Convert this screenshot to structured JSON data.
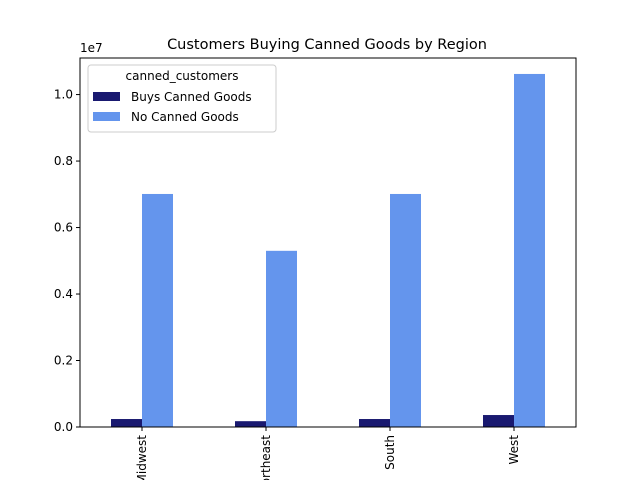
{
  "chart_data": {
    "type": "bar",
    "title": "Customers Buying Canned Goods by Region",
    "xlabel": "",
    "ylabel": "",
    "y_scale_label": "1e7",
    "categories": [
      "Midwest",
      "Northeast",
      "South",
      "West"
    ],
    "ylim": [
      0,
      11100000
    ],
    "y_ticks": [
      {
        "value": 0,
        "label": "0.0"
      },
      {
        "value": 2000000,
        "label": "0.2"
      },
      {
        "value": 4000000,
        "label": "0.4"
      },
      {
        "value": 6000000,
        "label": "0.6"
      },
      {
        "value": 8000000,
        "label": "0.8"
      },
      {
        "value": 10000000,
        "label": "1.0"
      }
    ],
    "legend": {
      "title": "canned_customers",
      "placement": "top-left"
    },
    "series": [
      {
        "name": "Buys Canned Goods",
        "color": "#191970",
        "values": [
          240000,
          175000,
          240000,
          360000
        ]
      },
      {
        "name": "No Canned Goods",
        "color": "#6495ED",
        "values": [
          7010000,
          5300000,
          7010000,
          10620000
        ]
      }
    ],
    "grid": false
  }
}
